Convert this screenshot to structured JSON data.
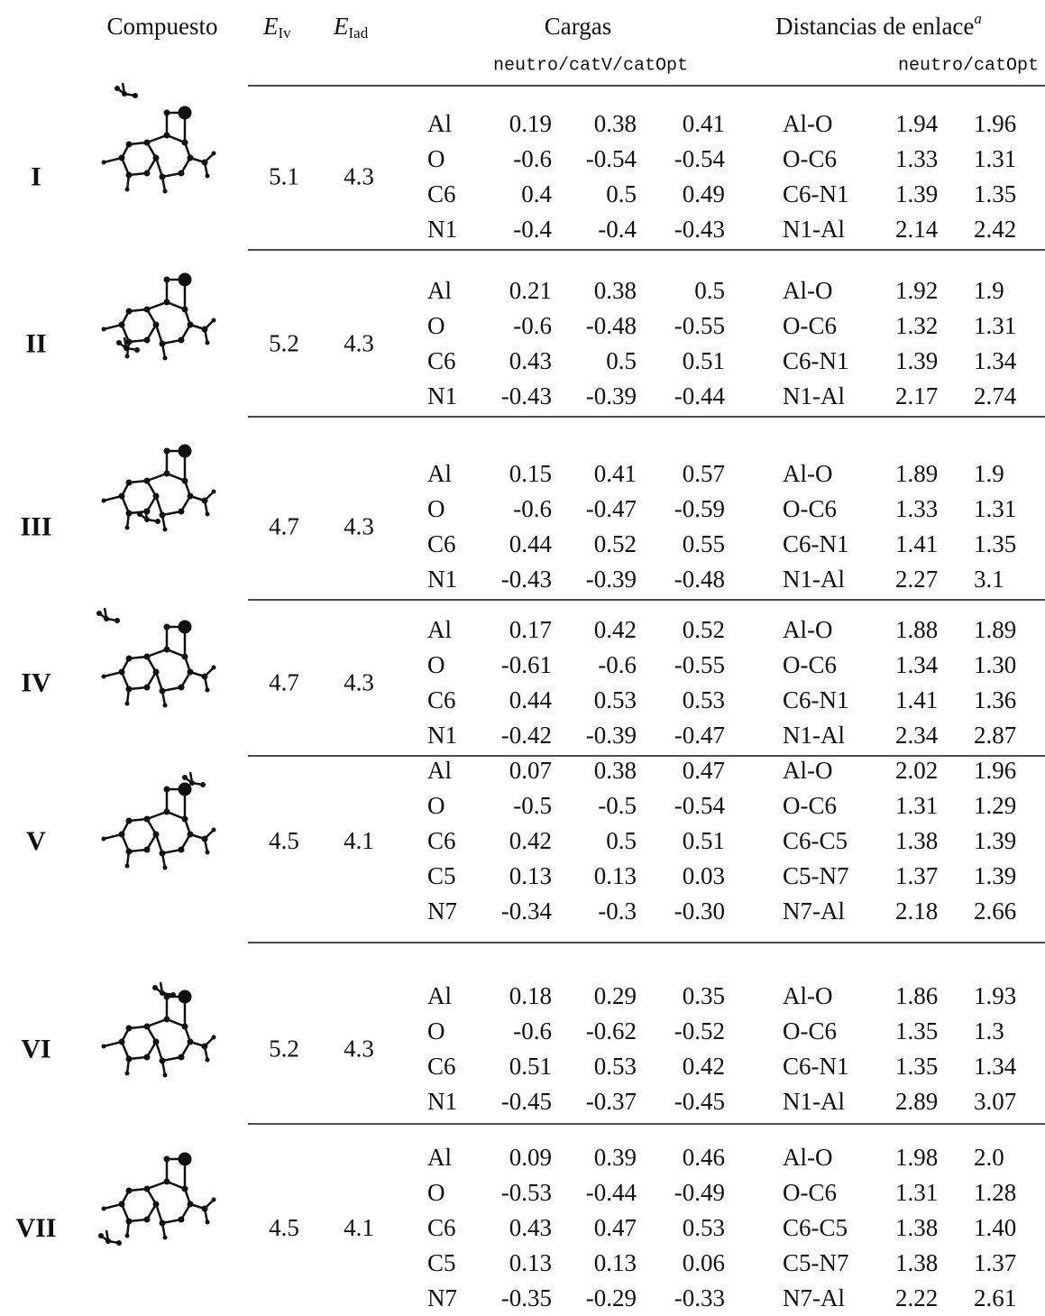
{
  "header": {
    "compound": "Compuesto",
    "eiv": {
      "symbol": "E",
      "subscript": "Iv"
    },
    "eiad": {
      "symbol": "E",
      "subscript": "Iad"
    },
    "charges": "Cargas",
    "charges_sub": "neutro/catV/catOpt",
    "distances": "Distancias de enlace",
    "distances_note": "a",
    "distances_sub": "neutro/catOpt"
  },
  "table": {
    "rows": [
      {
        "label": "I",
        "eiv": "5.1",
        "eiad": "4.3",
        "charges": [
          [
            "Al",
            "0.19",
            "0.38",
            "0.41"
          ],
          [
            "O",
            "-0.6",
            "-0.54",
            "-0.54"
          ],
          [
            "C6",
            "0.4",
            "0.5",
            "0.49"
          ],
          [
            "N1",
            "-0.4",
            "-0.4",
            "-0.43"
          ]
        ],
        "distances": [
          [
            "Al-O",
            "1.94",
            "1.96"
          ],
          [
            "O-C6",
            "1.33",
            "1.31"
          ],
          [
            "C6-N1",
            "1.39",
            "1.35"
          ],
          [
            "N1-Al",
            "2.14",
            "2.42"
          ]
        ]
      },
      {
        "label": "II",
        "eiv": "5.2",
        "eiad": "4.3",
        "charges": [
          [
            "Al",
            "0.21",
            "0.38",
            "0.5"
          ],
          [
            "O",
            "-0.6",
            "-0.48",
            "-0.55"
          ],
          [
            "C6",
            "0.43",
            "0.5",
            "0.51"
          ],
          [
            "N1",
            "-0.43",
            "-0.39",
            "-0.44"
          ]
        ],
        "distances": [
          [
            "Al-O",
            "1.92",
            "1.9"
          ],
          [
            "O-C6",
            "1.32",
            "1.31"
          ],
          [
            "C6-N1",
            "1.39",
            "1.34"
          ],
          [
            "N1-Al",
            "2.17",
            "2.74"
          ]
        ]
      },
      {
        "label": "III",
        "eiv": "4.7",
        "eiad": "4.3",
        "charges": [
          [
            "Al",
            "0.15",
            "0.41",
            "0.57"
          ],
          [
            "O",
            "-0.6",
            "-0.47",
            "-0.59"
          ],
          [
            "C6",
            "0.44",
            "0.52",
            "0.55"
          ],
          [
            "N1",
            "-0.43",
            "-0.39",
            "-0.48"
          ]
        ],
        "distances": [
          [
            "Al-O",
            "1.89",
            "1.9"
          ],
          [
            "O-C6",
            "1.33",
            "1.31"
          ],
          [
            "C6-N1",
            "1.41",
            "1.35"
          ],
          [
            "N1-Al",
            "2.27",
            "3.1"
          ]
        ]
      },
      {
        "label": "IV",
        "eiv": "4.7",
        "eiad": "4.3",
        "charges": [
          [
            "Al",
            "0.17",
            "0.42",
            "0.52"
          ],
          [
            "O",
            "-0.61",
            "-0.6",
            "-0.55"
          ],
          [
            "C6",
            "0.44",
            "0.53",
            "0.53"
          ],
          [
            "N1",
            "-0.42",
            "-0.39",
            "-0.47"
          ]
        ],
        "distances": [
          [
            "Al-O",
            "1.88",
            "1.89"
          ],
          [
            "O-C6",
            "1.34",
            "1.30"
          ],
          [
            "C6-N1",
            "1.41",
            "1.36"
          ],
          [
            "N1-Al",
            "2.34",
            "2.87"
          ]
        ]
      },
      {
        "label": "V",
        "eiv": "4.5",
        "eiad": "4.1",
        "charges": [
          [
            "Al",
            "0.07",
            "0.38",
            "0.47"
          ],
          [
            "O",
            "-0.5",
            "-0.5",
            "-0.54"
          ],
          [
            "C6",
            "0.42",
            "0.5",
            "0.51"
          ],
          [
            "C5",
            "0.13",
            "0.13",
            "0.03"
          ],
          [
            "N7",
            "-0.34",
            "-0.3",
            "-0.30"
          ]
        ],
        "distances": [
          [
            "Al-O",
            "2.02",
            "1.96"
          ],
          [
            "O-C6",
            "1.31",
            "1.29"
          ],
          [
            "C6-C5",
            "1.38",
            "1.39"
          ],
          [
            "C5-N7",
            "1.37",
            "1.39"
          ],
          [
            "N7-Al",
            "2.18",
            "2.66"
          ]
        ]
      },
      {
        "label": "VI",
        "eiv": "5.2",
        "eiad": "4.3",
        "charges": [
          [
            "Al",
            "0.18",
            "0.29",
            "0.35"
          ],
          [
            "O",
            "-0.6",
            "-0.62",
            "-0.52"
          ],
          [
            "C6",
            "0.51",
            "0.53",
            "0.42"
          ],
          [
            "N1",
            "-0.45",
            "-0.37",
            "-0.45"
          ]
        ],
        "distances": [
          [
            "Al-O",
            "1.86",
            "1.93"
          ],
          [
            "O-C6",
            "1.35",
            "1.3"
          ],
          [
            "C6-N1",
            "1.35",
            "1.34"
          ],
          [
            "N1-Al",
            "2.89",
            "3.07"
          ]
        ]
      },
      {
        "label": "VII",
        "eiv": "4.5",
        "eiad": "4.1",
        "charges": [
          [
            "Al",
            "0.09",
            "0.39",
            "0.46"
          ],
          [
            "O",
            "-0.53",
            "-0.44",
            "-0.49"
          ],
          [
            "C6",
            "0.43",
            "0.47",
            "0.53"
          ],
          [
            "C5",
            "0.13",
            "0.13",
            "0.06"
          ],
          [
            "N7",
            "-0.35",
            "-0.29",
            "-0.33"
          ]
        ],
        "distances": [
          [
            "Al-O",
            "1.98",
            "2.0"
          ],
          [
            "O-C6",
            "1.31",
            "1.28"
          ],
          [
            "C6-C5",
            "1.38",
            "1.40"
          ],
          [
            "C5-N7",
            "1.38",
            "1.37"
          ],
          [
            "N7-Al",
            "2.22",
            "2.61"
          ]
        ]
      }
    ]
  }
}
